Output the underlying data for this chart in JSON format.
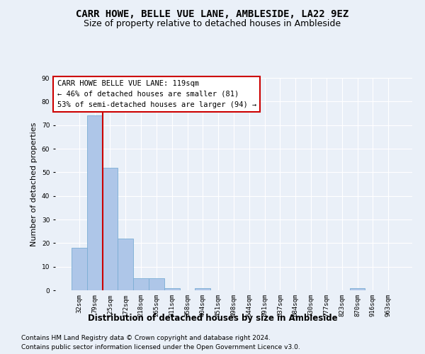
{
  "title": "CARR HOWE, BELLE VUE LANE, AMBLESIDE, LA22 9EZ",
  "subtitle": "Size of property relative to detached houses in Ambleside",
  "xlabel": "Distribution of detached houses by size in Ambleside",
  "ylabel": "Number of detached properties",
  "bin_labels": [
    "32sqm",
    "79sqm",
    "125sqm",
    "172sqm",
    "218sqm",
    "265sqm",
    "311sqm",
    "358sqm",
    "404sqm",
    "451sqm",
    "498sqm",
    "544sqm",
    "591sqm",
    "637sqm",
    "684sqm",
    "730sqm",
    "777sqm",
    "823sqm",
    "870sqm",
    "916sqm",
    "963sqm"
  ],
  "bar_values": [
    18,
    74,
    52,
    22,
    5,
    5,
    1,
    0,
    1,
    0,
    0,
    0,
    0,
    0,
    0,
    0,
    0,
    0,
    1,
    0,
    0
  ],
  "bar_color": "#aec6e8",
  "bar_edge_color": "#7aadd4",
  "vline_color": "#cc0000",
  "vline_x_index": 1.5,
  "annotation_text": "CARR HOWE BELLE VUE LANE: 119sqm\n← 46% of detached houses are smaller (81)\n53% of semi-detached houses are larger (94) →",
  "annotation_box_facecolor": "#ffffff",
  "annotation_box_edgecolor": "#cc0000",
  "ylim": [
    0,
    90
  ],
  "yticks": [
    0,
    10,
    20,
    30,
    40,
    50,
    60,
    70,
    80,
    90
  ],
  "background_color": "#eaf0f8",
  "plot_bg_color": "#eaf0f8",
  "footer_line1": "Contains HM Land Registry data © Crown copyright and database right 2024.",
  "footer_line2": "Contains public sector information licensed under the Open Government Licence v3.0.",
  "title_fontsize": 10,
  "subtitle_fontsize": 9,
  "tick_fontsize": 6.5,
  "ylabel_fontsize": 8,
  "xlabel_fontsize": 8.5,
  "annotation_fontsize": 7.5,
  "footer_fontsize": 6.5
}
